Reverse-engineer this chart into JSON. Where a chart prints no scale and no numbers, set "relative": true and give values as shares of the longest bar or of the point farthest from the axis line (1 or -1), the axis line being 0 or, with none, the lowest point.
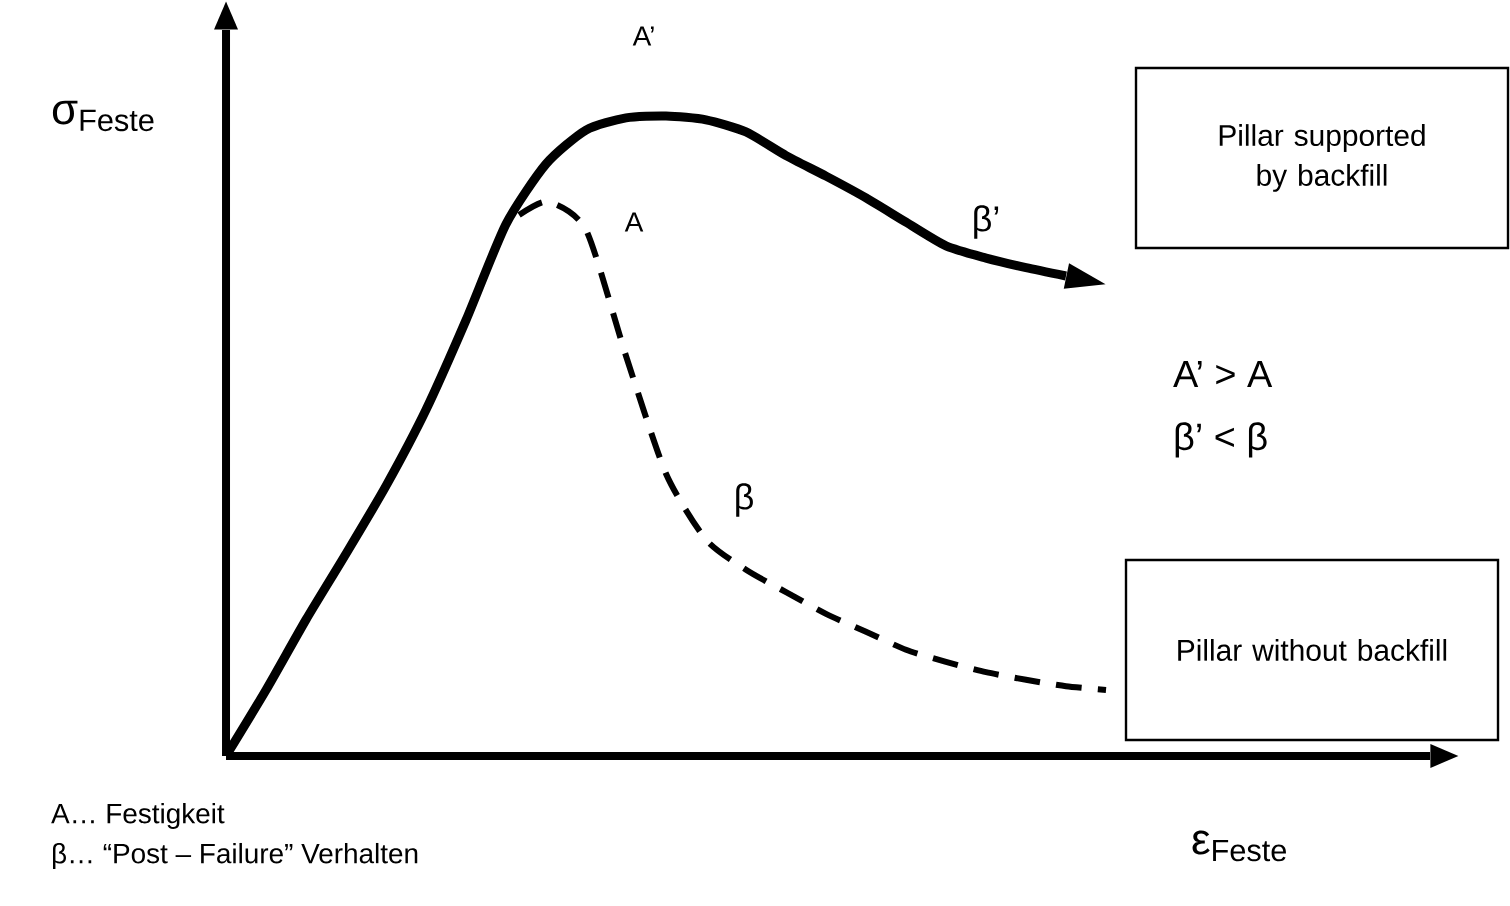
{
  "chart_data": {
    "type": "line",
    "relative": true,
    "xlabel": "ε$_{Feste}$",
    "ylabel": "σ$_{Feste}$",
    "categories": [
      null,
      null,
      null,
      null,
      null,
      null,
      null,
      null,
      null,
      null,
      null,
      null,
      null,
      null,
      null,
      null,
      null,
      null,
      null,
      null,
      null,
      null,
      null
    ],
    "series": [
      {
        "color": "#000000",
        "line_style": "solid",
        "values": [
          0,
          0.103,
          0.213,
          0.316,
          0.422,
          0.541,
          0.681,
          0.831,
          0.925,
          0.978,
          0.997,
          1,
          0.994,
          0.975,
          0.938,
          0.906,
          0.872,
          0.834,
          0.797,
          0.778,
          0.763,
          0.75,
          null
        ]
      },
      {
        "color": "#000000",
        "line_style": "dashed",
        "values": [
          null,
          null,
          null,
          null,
          null,
          null,
          null,
          0.831,
          0.866,
          0.822,
          0.625,
          0.441,
          0.338,
          0.291,
          0.256,
          0.222,
          0.194,
          0.166,
          0.147,
          0.131,
          0.119,
          0.109,
          0.103
        ]
      }
    ],
    "annotations": [
      "A’",
      "A",
      "β’",
      "β",
      "Pillar supported by backfill",
      "Pillar without backfill",
      "A’ > A",
      "β’ < β",
      "A… Festigkeit",
      "β… “Post – Failure” Verhalten"
    ]
  }
}
